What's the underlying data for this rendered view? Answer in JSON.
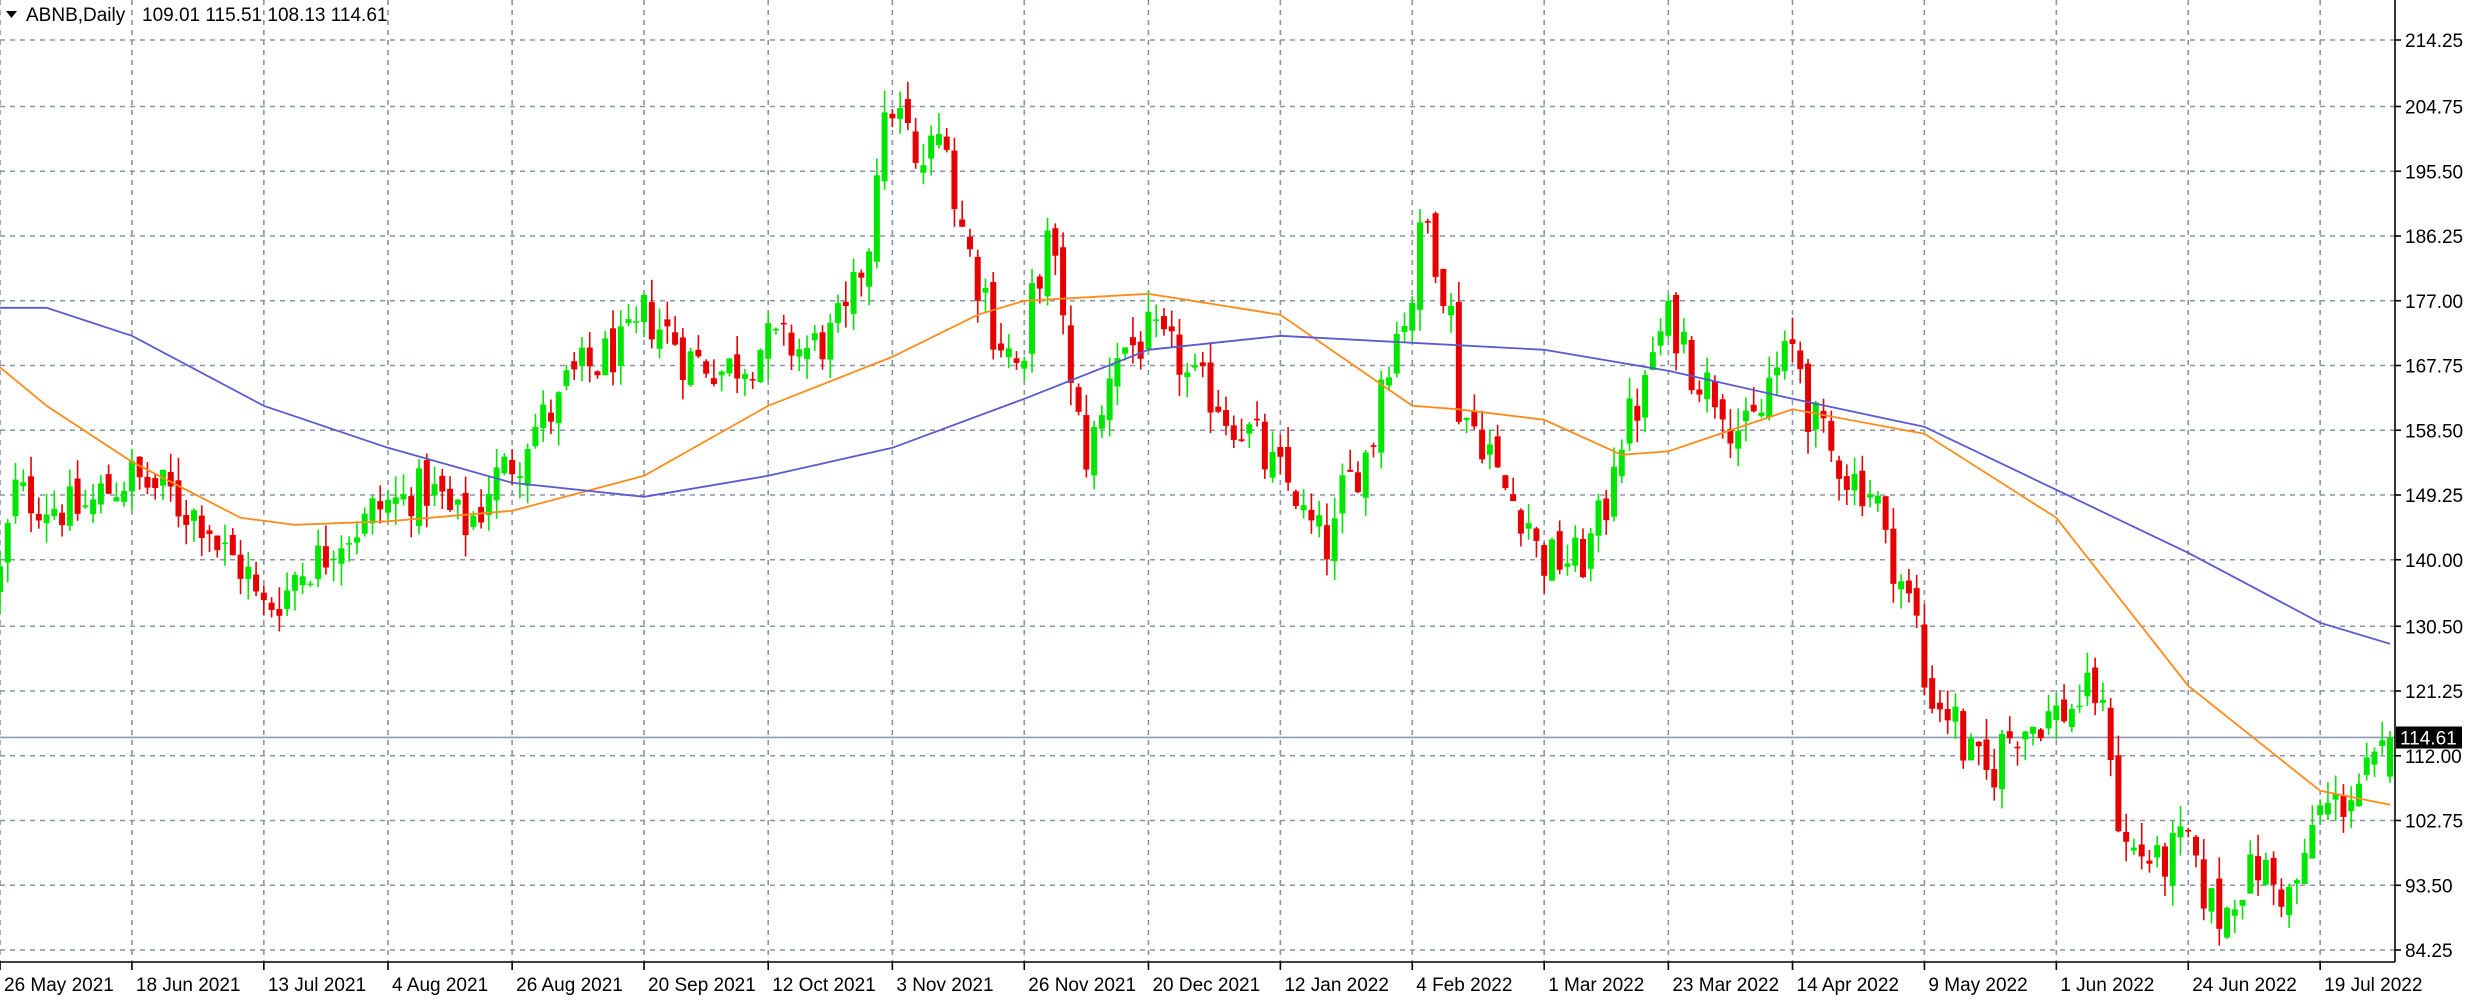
{
  "header": {
    "symbol": "ABNB,Daily",
    "ohlc": "109.01 115.51 108.13 114.61"
  },
  "price_badge": "114.61",
  "colors": {
    "background": "#ffffff",
    "grid": "#8a94a6",
    "bull": "#00e600",
    "bear": "#e60000",
    "ma_fast": "#ff8c1a",
    "ma_slow": "#5a5ad2",
    "price_line": "#8c9cb4",
    "badge_bg": "#000000",
    "badge_text": "#ffffff"
  },
  "chart_data": {
    "type": "candlestick",
    "title": "ABNB,Daily",
    "ylim": [
      82.5,
      220.5
    ],
    "grid": true,
    "y_ticks": [
      "214.25",
      "204.75",
      "195.50",
      "186.25",
      "177.00",
      "167.75",
      "158.50",
      "149.25",
      "140.00",
      "130.50",
      "121.25",
      "112.00",
      "102.75",
      "93.50",
      "84.25"
    ],
    "x_ticks": [
      "26 May 2021",
      "18 Jun 2021",
      "13 Jul 2021",
      "4 Aug 2021",
      "26 Aug 2021",
      "20 Sep 2021",
      "12 Oct 2021",
      "3 Nov 2021",
      "26 Nov 2021",
      "20 Dec 2021",
      "12 Jan 2022",
      "4 Feb 2022",
      "1 Mar 2022",
      "23 Mar 2022",
      "14 Apr 2022",
      "9 May 2022",
      "1 Jun 2022",
      "24 Jun 2022",
      "19 Jul 2022"
    ],
    "current_price": 114.61,
    "close_series": [
      {
        "date": "26 May 2021",
        "close": 138
      },
      {
        "date": "28 May 2021",
        "close": 150
      },
      {
        "date": "3 Jun 2021",
        "close": 148
      },
      {
        "date": "9 Jun 2021",
        "close": 147
      },
      {
        "date": "15 Jun 2021",
        "close": 150
      },
      {
        "date": "18 Jun 2021",
        "close": 152
      },
      {
        "date": "24 Jun 2021",
        "close": 150
      },
      {
        "date": "1 Jul 2021",
        "close": 146
      },
      {
        "date": "8 Jul 2021",
        "close": 139
      },
      {
        "date": "13 Jul 2021",
        "close": 133
      },
      {
        "date": "19 Jul 2021",
        "close": 138
      },
      {
        "date": "26 Jul 2021",
        "close": 143
      },
      {
        "date": "4 Aug 2021",
        "close": 148
      },
      {
        "date": "11 Aug 2021",
        "close": 150
      },
      {
        "date": "18 Aug 2021",
        "close": 145
      },
      {
        "date": "26 Aug 2021",
        "close": 154
      },
      {
        "date": "1 Sep 2021",
        "close": 160
      },
      {
        "date": "8 Sep 2021",
        "close": 167
      },
      {
        "date": "15 Sep 2021",
        "close": 170
      },
      {
        "date": "20 Sep 2021",
        "close": 175
      },
      {
        "date": "27 Sep 2021",
        "close": 169
      },
      {
        "date": "4 Oct 2021",
        "close": 167
      },
      {
        "date": "12 Oct 2021",
        "close": 171
      },
      {
        "date": "19 Oct 2021",
        "close": 170
      },
      {
        "date": "26 Oct 2021",
        "close": 174
      },
      {
        "date": "3 Nov 2021",
        "close": 205
      },
      {
        "date": "8 Nov 2021",
        "close": 195
      },
      {
        "date": "12 Nov 2021",
        "close": 202
      },
      {
        "date": "18 Nov 2021",
        "close": 180
      },
      {
        "date": "26 Nov 2021",
        "close": 166
      },
      {
        "date": "1 Dec 2021",
        "close": 185
      },
      {
        "date": "8 Dec 2021",
        "close": 155
      },
      {
        "date": "14 Dec 2021",
        "close": 170
      },
      {
        "date": "20 Dec 2021",
        "close": 172
      },
      {
        "date": "28 Dec 2021",
        "close": 165
      },
      {
        "date": "4 Jan 2022",
        "close": 160
      },
      {
        "date": "12 Jan 2022",
        "close": 152
      },
      {
        "date": "20 Jan 2022",
        "close": 142
      },
      {
        "date": "27 Jan 2022",
        "close": 155
      },
      {
        "date": "4 Feb 2022",
        "close": 178
      },
      {
        "date": "8 Feb 2022",
        "close": 188
      },
      {
        "date": "14 Feb 2022",
        "close": 162
      },
      {
        "date": "22 Feb 2022",
        "close": 150
      },
      {
        "date": "1 Mar 2022",
        "close": 140
      },
      {
        "date": "8 Mar 2022",
        "close": 140
      },
      {
        "date": "15 Mar 2022",
        "close": 158
      },
      {
        "date": "23 Mar 2022",
        "close": 174
      },
      {
        "date": "30 Mar 2022",
        "close": 165
      },
      {
        "date": "6 Apr 2022",
        "close": 158
      },
      {
        "date": "14 Apr 2022",
        "close": 170
      },
      {
        "date": "21 Apr 2022",
        "close": 155
      },
      {
        "date": "28 Apr 2022",
        "close": 150
      },
      {
        "date": "3 May 2022",
        "close": 140
      },
      {
        "date": "9 May 2022",
        "close": 122
      },
      {
        "date": "13 May 2022",
        "close": 117
      },
      {
        "date": "19 May 2022",
        "close": 109
      },
      {
        "date": "25 May 2022",
        "close": 116
      },
      {
        "date": "1 Jun 2022",
        "close": 118
      },
      {
        "date": "8 Jun 2022",
        "close": 121
      },
      {
        "date": "14 Jun 2022",
        "close": 99
      },
      {
        "date": "20 Jun 2022",
        "close": 96
      },
      {
        "date": "24 Jun 2022",
        "close": 100
      },
      {
        "date": "30 Jun 2022",
        "close": 89
      },
      {
        "date": "7 Jul 2022",
        "close": 96
      },
      {
        "date": "13 Jul 2022",
        "close": 92
      },
      {
        "date": "19 Jul 2022",
        "close": 104
      },
      {
        "date": "25 Jul 2022",
        "close": 107
      },
      {
        "date": "1 Aug 2022",
        "close": 114.61
      }
    ],
    "series": [
      {
        "color": "#ff8c1a",
        "values": [
          {
            "date": "26 May 2021",
            "value": 167.5
          },
          {
            "date": "3 Jun 2021",
            "value": 162
          },
          {
            "date": "18 Jun 2021",
            "value": 154
          },
          {
            "date": "8 Jul 2021",
            "value": 146
          },
          {
            "date": "19 Jul 2021",
            "value": 145
          },
          {
            "date": "4 Aug 2021",
            "value": 145.5
          },
          {
            "date": "26 Aug 2021",
            "value": 147
          },
          {
            "date": "20 Sep 2021",
            "value": 152
          },
          {
            "date": "12 Oct 2021",
            "value": 162
          },
          {
            "date": "3 Nov 2021",
            "value": 169
          },
          {
            "date": "18 Nov 2021",
            "value": 175
          },
          {
            "date": "26 Nov 2021",
            "value": 177
          },
          {
            "date": "20 Dec 2021",
            "value": 178
          },
          {
            "date": "12 Jan 2022",
            "value": 175
          },
          {
            "date": "4 Feb 2022",
            "value": 162
          },
          {
            "date": "14 Feb 2022",
            "value": 161.5
          },
          {
            "date": "1 Mar 2022",
            "value": 160
          },
          {
            "date": "15 Mar 2022",
            "value": 155
          },
          {
            "date": "23 Mar 2022",
            "value": 155.5
          },
          {
            "date": "14 Apr 2022",
            "value": 161.5
          },
          {
            "date": "9 May 2022",
            "value": 158
          },
          {
            "date": "1 Jun 2022",
            "value": 146
          },
          {
            "date": "24 Jun 2022",
            "value": 122
          },
          {
            "date": "19 Jul 2022",
            "value": 107
          },
          {
            "date": "1 Aug 2022",
            "value": 105
          }
        ]
      },
      {
        "color": "#5a5ad2",
        "values": [
          {
            "date": "26 May 2021",
            "value": 176
          },
          {
            "date": "3 Jun 2021",
            "value": 176
          },
          {
            "date": "18 Jun 2021",
            "value": 172
          },
          {
            "date": "13 Jul 2021",
            "value": 162
          },
          {
            "date": "4 Aug 2021",
            "value": 156
          },
          {
            "date": "26 Aug 2021",
            "value": 151
          },
          {
            "date": "20 Sep 2021",
            "value": 149
          },
          {
            "date": "12 Oct 2021",
            "value": 152
          },
          {
            "date": "3 Nov 2021",
            "value": 156
          },
          {
            "date": "26 Nov 2021",
            "value": 163
          },
          {
            "date": "20 Dec 2021",
            "value": 170
          },
          {
            "date": "12 Jan 2022",
            "value": 172
          },
          {
            "date": "4 Feb 2022",
            "value": 171
          },
          {
            "date": "1 Mar 2022",
            "value": 170
          },
          {
            "date": "23 Mar 2022",
            "value": 167
          },
          {
            "date": "14 Apr 2022",
            "value": 163
          },
          {
            "date": "9 May 2022",
            "value": 159
          },
          {
            "date": "1 Jun 2022",
            "value": 150
          },
          {
            "date": "24 Jun 2022",
            "value": 141
          },
          {
            "date": "19 Jul 2022",
            "value": 131
          },
          {
            "date": "1 Aug 2022",
            "value": 128
          }
        ]
      }
    ]
  }
}
